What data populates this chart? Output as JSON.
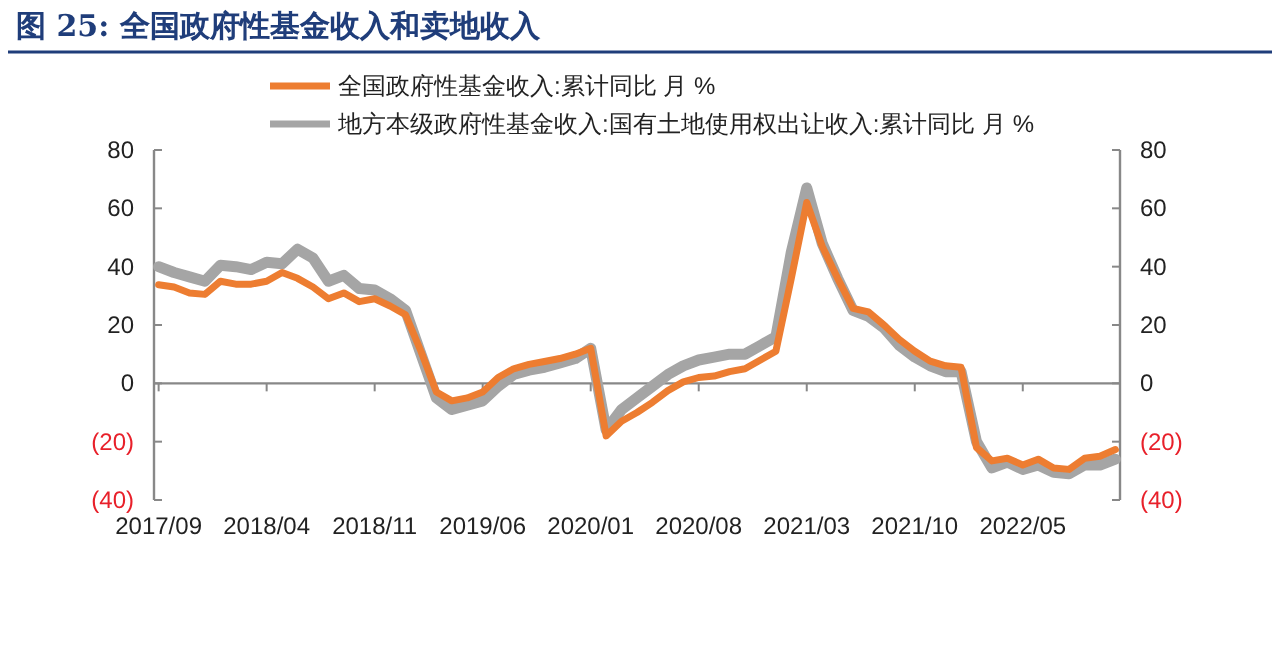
{
  "chart_data": {
    "type": "line",
    "title": "图 25: 全国政府性基金收入和卖地收入",
    "categories": [
      "2017/09",
      null,
      null,
      null,
      null,
      null,
      null,
      "2018/04",
      null,
      null,
      null,
      null,
      null,
      null,
      "2018/11",
      null,
      null,
      null,
      null,
      null,
      null,
      "2019/06",
      null,
      null,
      null,
      null,
      null,
      null,
      "2020/01",
      null,
      null,
      null,
      null,
      null,
      null,
      "2020/08",
      null,
      null,
      null,
      null,
      null,
      null,
      "2021/03",
      null,
      null,
      null,
      null,
      null,
      null,
      "2021/10",
      null,
      null,
      null,
      null,
      null,
      null,
      "2022/05",
      null,
      null,
      null,
      null,
      null,
      null
    ],
    "series": [
      {
        "name": "全国政府性基金收入:累计同比 月 %",
        "color": "#ed7d31",
        "values": [
          33.8,
          33,
          31,
          30.5,
          35,
          34,
          34,
          35,
          38,
          36,
          33,
          29,
          31,
          28,
          29,
          26.5,
          23.5,
          11,
          -3,
          -6,
          -5,
          -3,
          2,
          5,
          6.5,
          7.5,
          8.5,
          10,
          12,
          -18,
          -13,
          -10,
          -6.5,
          -2.5,
          0.5,
          2,
          2.5,
          4,
          5,
          8,
          11,
          36,
          62,
          47,
          36,
          25.7,
          24.5,
          20,
          15,
          11,
          7.6,
          6,
          5.5,
          -22,
          -26.6,
          -25.7,
          -28,
          -26,
          -29,
          -29.5,
          -25.7,
          -25,
          -22.7
        ]
      },
      {
        "name": "地方本级政府性基金收入:国有土地使用权出让收入:累计同比 月 %",
        "color": "#a5a5a5",
        "values": [
          40,
          38,
          36.5,
          35,
          40.5,
          40,
          39,
          41.5,
          41,
          46,
          43,
          35,
          37,
          32.5,
          32,
          29,
          25,
          10,
          -5,
          -9,
          -7.5,
          -6,
          -1,
          3,
          4.5,
          5.5,
          7,
          8.5,
          12,
          -16,
          -9,
          -5,
          -1,
          3,
          6,
          8,
          9,
          10,
          10,
          13,
          16,
          45,
          67,
          48,
          36,
          25,
          23,
          19,
          13,
          9,
          6,
          4,
          4,
          -20,
          -29,
          -27,
          -29.5,
          -28,
          -30.5,
          -31,
          -28,
          -28,
          -26
        ]
      }
    ],
    "ylim": [
      -40,
      80
    ],
    "yticks": [
      {
        "value": -40,
        "label": "(40)"
      },
      {
        "value": -20,
        "label": "(20)"
      },
      0,
      20,
      40,
      60,
      80
    ],
    "y2lim": [
      -40,
      80
    ],
    "y2ticks": [
      {
        "value": -40,
        "label": "(40)"
      },
      {
        "value": -20,
        "label": "(20)"
      },
      0,
      20,
      40,
      60,
      80
    ],
    "legend": "top",
    "marker": "none",
    "line_style": "solid"
  }
}
